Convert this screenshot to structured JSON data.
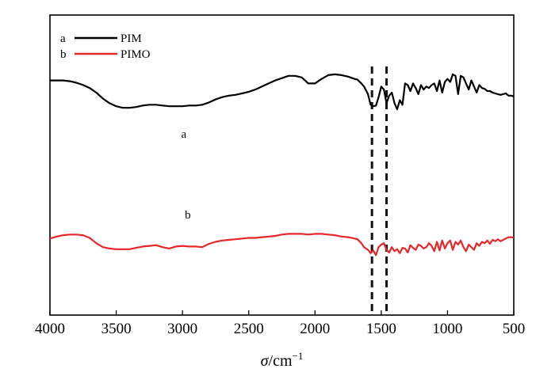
{
  "chart_data": {
    "type": "line",
    "title": "",
    "xlabel": "σ/cm⁻¹",
    "xlabel_parts": {
      "symbol": "σ",
      "unit": "/cm",
      "exponent": "−1"
    },
    "ylabel": "",
    "xlim": [
      4000,
      500
    ],
    "x_reversed": true,
    "y_ticks_shown": false,
    "grid": false,
    "legend_position": "top-left",
    "x_ticks": [
      4000,
      3500,
      3000,
      2500,
      2000,
      1500,
      1000,
      500
    ],
    "x_tick_labels": [
      "4000",
      "3500",
      "3000",
      "2500",
      "2000",
      "1500",
      "1000",
      "500"
    ],
    "reference_lines": [
      1570,
      1460
    ],
    "series": [
      {
        "name": "PIM",
        "legend_letter": "a",
        "curve_label": "a",
        "label_at": 2990,
        "color": "#000000",
        "offset": 0,
        "x": [
          4000,
          3900,
          3850,
          3800,
          3750,
          3700,
          3650,
          3600,
          3550,
          3500,
          3450,
          3400,
          3350,
          3300,
          3250,
          3200,
          3150,
          3100,
          3050,
          3000,
          2950,
          2900,
          2850,
          2800,
          2750,
          2700,
          2650,
          2600,
          2550,
          2500,
          2450,
          2400,
          2350,
          2300,
          2250,
          2200,
          2150,
          2100,
          2050,
          2000,
          1950,
          1900,
          1850,
          1800,
          1750,
          1700,
          1680,
          1650,
          1630,
          1600,
          1580,
          1560,
          1540,
          1520,
          1500,
          1480,
          1460,
          1440,
          1420,
          1400,
          1380,
          1360,
          1340,
          1320,
          1300,
          1280,
          1260,
          1240,
          1220,
          1200,
          1180,
          1160,
          1140,
          1120,
          1100,
          1080,
          1060,
          1040,
          1020,
          1000,
          980,
          960,
          940,
          920,
          900,
          880,
          860,
          840,
          820,
          800,
          780,
          760,
          740,
          720,
          700,
          680,
          660,
          640,
          620,
          600,
          580,
          560,
          540,
          520,
          500
        ],
        "y": [
          0.9,
          0.9,
          0.89,
          0.87,
          0.84,
          0.8,
          0.74,
          0.66,
          0.6,
          0.56,
          0.54,
          0.54,
          0.55,
          0.57,
          0.58,
          0.58,
          0.57,
          0.56,
          0.56,
          0.56,
          0.57,
          0.57,
          0.58,
          0.61,
          0.65,
          0.68,
          0.7,
          0.71,
          0.73,
          0.75,
          0.78,
          0.82,
          0.86,
          0.9,
          0.93,
          0.96,
          0.96,
          0.94,
          0.86,
          0.86,
          0.92,
          0.97,
          0.98,
          0.97,
          0.95,
          0.92,
          0.91,
          0.86,
          0.82,
          0.72,
          0.58,
          0.56,
          0.57,
          0.68,
          0.82,
          0.78,
          0.6,
          0.7,
          0.74,
          0.6,
          0.52,
          0.64,
          0.58,
          0.86,
          0.84,
          0.76,
          0.86,
          0.8,
          0.72,
          0.84,
          0.78,
          0.82,
          0.8,
          0.84,
          0.86,
          0.76,
          0.9,
          0.74,
          0.88,
          0.92,
          0.88,
          0.98,
          0.96,
          0.72,
          0.96,
          0.94,
          0.86,
          0.78,
          0.9,
          0.82,
          0.74,
          0.84,
          0.8,
          0.79,
          0.76,
          0.76,
          0.74,
          0.73,
          0.72,
          0.71,
          0.72,
          0.73,
          0.7,
          0.7,
          0.69
        ]
      },
      {
        "name": "PIMO",
        "legend_letter": "b",
        "curve_label": "b",
        "label_at": 2960,
        "color": "#e8262a",
        "offset": 0,
        "x": [
          4000,
          3950,
          3900,
          3850,
          3800,
          3750,
          3700,
          3650,
          3600,
          3550,
          3500,
          3450,
          3400,
          3350,
          3300,
          3250,
          3200,
          3150,
          3100,
          3050,
          3000,
          2950,
          2900,
          2850,
          2800,
          2750,
          2700,
          2650,
          2600,
          2550,
          2500,
          2450,
          2400,
          2350,
          2300,
          2250,
          2200,
          2150,
          2100,
          2050,
          2000,
          1950,
          1900,
          1850,
          1800,
          1750,
          1700,
          1680,
          1650,
          1630,
          1600,
          1580,
          1560,
          1540,
          1520,
          1500,
          1480,
          1460,
          1440,
          1420,
          1400,
          1380,
          1360,
          1340,
          1320,
          1300,
          1280,
          1260,
          1240,
          1220,
          1200,
          1180,
          1160,
          1140,
          1120,
          1100,
          1080,
          1060,
          1040,
          1020,
          1000,
          980,
          960,
          940,
          920,
          900,
          880,
          860,
          840,
          820,
          800,
          780,
          760,
          740,
          720,
          700,
          680,
          660,
          640,
          620,
          600,
          580,
          560,
          540,
          520,
          500
        ],
        "y": [
          0.27,
          0.3,
          0.32,
          0.33,
          0.33,
          0.32,
          0.28,
          0.2,
          0.14,
          0.12,
          0.11,
          0.11,
          0.11,
          0.13,
          0.15,
          0.16,
          0.17,
          0.14,
          0.12,
          0.15,
          0.16,
          0.15,
          0.15,
          0.14,
          0.19,
          0.22,
          0.24,
          0.25,
          0.26,
          0.27,
          0.28,
          0.28,
          0.29,
          0.3,
          0.31,
          0.33,
          0.34,
          0.34,
          0.34,
          0.33,
          0.34,
          0.34,
          0.33,
          0.32,
          0.3,
          0.29,
          0.27,
          0.26,
          0.2,
          0.14,
          0.1,
          0.05,
          0.09,
          0.02,
          0.14,
          0.18,
          0.2,
          0.1,
          0.06,
          0.14,
          0.08,
          0.11,
          0.05,
          0.13,
          0.12,
          0.06,
          0.17,
          0.13,
          0.1,
          0.18,
          0.16,
          0.12,
          0.14,
          0.2,
          0.16,
          0.08,
          0.22,
          0.09,
          0.24,
          0.12,
          0.2,
          0.24,
          0.1,
          0.22,
          0.18,
          0.24,
          0.14,
          0.08,
          0.18,
          0.14,
          0.1,
          0.2,
          0.16,
          0.22,
          0.2,
          0.24,
          0.19,
          0.25,
          0.23,
          0.26,
          0.23,
          0.25,
          0.27,
          0.29,
          0.29,
          0.28
        ]
      }
    ]
  }
}
